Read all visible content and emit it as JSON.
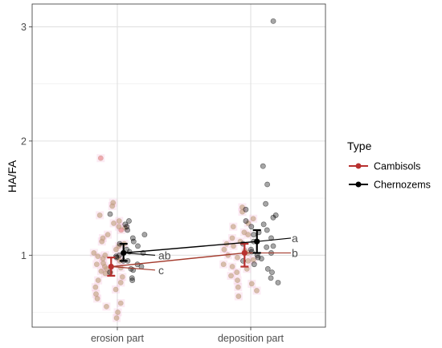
{
  "chart_data": {
    "type": "scatter",
    "title": "",
    "xlabel": "",
    "ylabel": "HA/FA",
    "categories": [
      "erosion part",
      "deposition part"
    ],
    "ylim": [
      0.37,
      3.2
    ],
    "yticks": [
      1,
      2,
      3
    ],
    "grid": true,
    "legend": {
      "title": "Type",
      "position": "right",
      "entries": [
        "Cambisols",
        "Chernozems"
      ]
    },
    "colors": {
      "Cambisols": "#b8312f",
      "Chernozems": "#000000",
      "cambisols_points": "#c4a484",
      "highlight": "#f4b6d6"
    },
    "series": [
      {
        "name": "Cambisols",
        "means": [
          0.9,
          1.02
        ],
        "ci_low": [
          0.82,
          0.9
        ],
        "ci_high": [
          0.98,
          1.1
        ],
        "group_labels": [
          "c",
          "b"
        ],
        "label_color": "#b8312f",
        "points": {
          "erosion part": [
            1.46,
            1.85,
            1.43,
            1.24,
            1.28,
            1.22,
            1.3,
            1.05,
            1.12,
            0.98,
            0.92,
            0.85,
            0.78,
            0.62,
            0.5,
            0.58,
            0.95,
            1.02,
            0.88,
            0.7,
            1.15,
            1.35,
            0.97,
            0.81,
            0.76,
            0.9,
            1.0,
            1.08,
            0.66,
            0.72,
            0.86,
            0.93,
            1.18,
            1.1,
            0.55,
            0.45,
            0.99,
            0.84,
            0.89,
            1.25
          ],
          "deposition part": [
            1.42,
            1.32,
            1.28,
            1.2,
            1.1,
            1.02,
            0.98,
            0.95,
            0.9,
            0.85,
            0.78,
            0.72,
            0.69,
            0.64,
            1.05,
            1.15,
            1.0,
            0.88,
            0.92,
            1.08,
            1.25,
            0.82,
            0.75,
            1.12,
            1.38,
            0.96,
            1.04,
            1.18
          ]
        }
      },
      {
        "name": "Chernozems",
        "means": [
          1.02,
          1.12
        ],
        "ci_low": [
          0.95,
          1.02
        ],
        "ci_high": [
          1.1,
          1.22
        ],
        "group_labels": [
          "ab",
          "a"
        ],
        "label_color": "#000000",
        "points": {
          "erosion part": [
            1.36,
            1.3,
            1.27,
            1.22,
            1.15,
            1.1,
            1.05,
            1.02,
            0.98,
            0.95,
            0.9,
            0.88,
            0.85,
            0.8,
            0.78,
            0.95,
            1.08,
            1.12,
            1.0,
            0.92,
            1.18,
            1.25,
            0.99,
            1.03,
            0.87
          ],
          "deposition part": [
            3.05,
            1.78,
            1.62,
            1.4,
            1.35,
            1.3,
            1.25,
            1.2,
            1.15,
            1.12,
            1.08,
            1.05,
            1.02,
            1.0,
            0.98,
            0.95,
            0.92,
            0.88,
            0.85,
            0.8,
            0.76,
            1.27,
            1.33,
            1.18,
            1.1,
            1.03,
            0.97,
            1.45,
            1.22,
            1.07
          ]
        }
      }
    ]
  }
}
